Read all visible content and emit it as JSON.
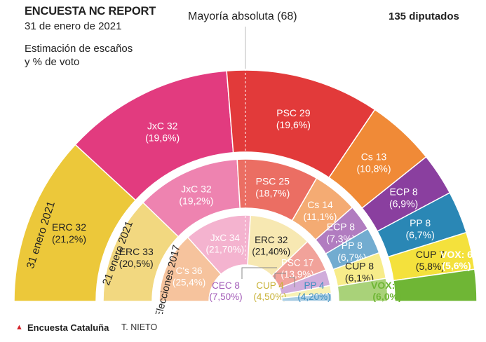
{
  "header": {
    "title": "ENCUESTA NC REPORT",
    "date": "31 de enero de 2021",
    "subtitle_line1": "Estimación de escaños",
    "subtitle_line2": "y % de voto",
    "majority": "Mayoría absoluta (68)",
    "total_seats": "135 diputados"
  },
  "footer": {
    "source_title": "Encuesta Cataluña",
    "author": "T. NIETO"
  },
  "chart_data": {
    "type": "parliament",
    "title": "ENCUESTA NC REPORT",
    "total_seats": 135,
    "majority": 68,
    "rings": [
      {
        "name": "31 enero 2021",
        "parties": [
          {
            "party": "ERC",
            "seats": 32,
            "vote_label": "(21,2%)",
            "color": "#ecc83a",
            "label_color": "#222222"
          },
          {
            "party": "JxC",
            "seats": 32,
            "vote_label": "(19,6%)",
            "color": "#e23b7f",
            "label_color": "#ffffff"
          },
          {
            "party": "PSC",
            "seats": 29,
            "vote_label": "(19,6%)",
            "color": "#e23a3a",
            "label_color": "#ffffff"
          },
          {
            "party": "Cs",
            "seats": 13,
            "vote_label": "(10,8%)",
            "color": "#f08a37",
            "label_color": "#ffffff"
          },
          {
            "party": "ECP",
            "seats": 8,
            "vote_label": "(6,9%)",
            "color": "#8a3f9f",
            "label_color": "#ffffff"
          },
          {
            "party": "PP",
            "seats": 8,
            "vote_label": "(6,7%)",
            "color": "#2a87b5",
            "label_color": "#ffffff"
          },
          {
            "party": "CUP",
            "seats": 7,
            "vote_label": "(5,8%)",
            "color": "#f4e13c",
            "label_color": "#222222"
          },
          {
            "party": "VOX",
            "seats": 6,
            "vote_label": "(5,6%)",
            "color": "#6fb635",
            "label_color": "#ffffff"
          }
        ]
      },
      {
        "name": "21 enero 2021",
        "parties": [
          {
            "party": "ERC",
            "seats": 33,
            "vote_label": "(20,5%)",
            "color": "#f2d880",
            "label_color": "#222222"
          },
          {
            "party": "JxC",
            "seats": 32,
            "vote_label": "(19,2%)",
            "color": "#ee83b0",
            "label_color": "#ffffff"
          },
          {
            "party": "PSC",
            "seats": 25,
            "vote_label": "(18,7%)",
            "color": "#eb6e63",
            "label_color": "#ffffff"
          },
          {
            "party": "Cs",
            "seats": 14,
            "vote_label": "(11,1%)",
            "color": "#f4ab73",
            "label_color": "#ffffff"
          },
          {
            "party": "ECP",
            "seats": 8,
            "vote_label": "(7,3%)",
            "color": "#b17cc0",
            "label_color": "#ffffff"
          },
          {
            "party": "PP",
            "seats": 8,
            "vote_label": "(6,7%)",
            "color": "#72acd0",
            "label_color": "#ffffff"
          },
          {
            "party": "CUP",
            "seats": 8,
            "vote_label": "(6,1%)",
            "color": "#f7ec8a",
            "label_color": "#222222"
          },
          {
            "party": "VOX",
            "seats": 7,
            "vote_label": "(6,0%)",
            "color": "#a9d279",
            "label_color": "#6fb635"
          }
        ]
      },
      {
        "name": "Elecciones 2017",
        "parties": [
          {
            "party": "C's",
            "seats": 36,
            "vote_label": "(25,4%)",
            "color": "#f6c39d",
            "label_color": "#ffffff"
          },
          {
            "party": "JxC",
            "seats": 34,
            "vote_label": "(21,70%)",
            "color": "#f4b3cf",
            "label_color": "#ffffff"
          },
          {
            "party": "ERC",
            "seats": 32,
            "vote_label": "(21,40%)",
            "color": "#f7e8b2",
            "label_color": "#222222"
          },
          {
            "party": "PSC",
            "seats": 17,
            "vote_label": "(13,9%)",
            "color": "#f1a29a",
            "label_color": "#ffffff"
          },
          {
            "party": "CEC",
            "seats": 8,
            "vote_label": "(7,50%)",
            "color": "#d0addb",
            "label_color": "#a35cb8"
          },
          {
            "party": "CUP",
            "seats": 4,
            "vote_label": "(4,50%)",
            "color": "#f8f2b5",
            "label_color": "#c8b236"
          },
          {
            "party": "PP",
            "seats": 4,
            "vote_label": "(4,20%)",
            "color": "#a9cde3",
            "label_color": "#3f8fc0"
          }
        ]
      }
    ]
  }
}
